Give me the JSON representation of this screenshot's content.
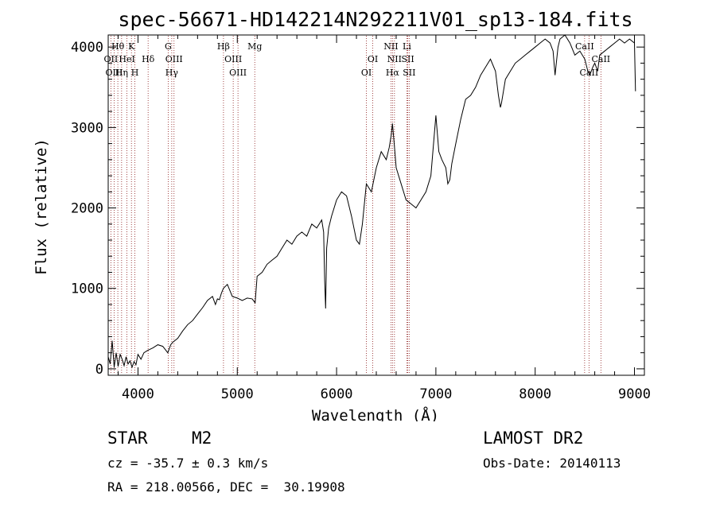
{
  "chart_data": {
    "type": "line",
    "title": "spec-56671-HD142214N292211V01_sp13-184.fits",
    "xlabel": "Wavelength (Å)",
    "ylabel": "Flux (relative)",
    "xlim": [
      3700,
      9100
    ],
    "ylim": [
      -80,
      4150
    ],
    "xticks": [
      4000,
      5000,
      6000,
      7000,
      8000,
      9000
    ],
    "yticks": [
      0,
      1000,
      2000,
      3000,
      4000
    ],
    "series": [
      {
        "name": "flux",
        "x": [
          3700,
          3720,
          3740,
          3760,
          3780,
          3800,
          3820,
          3840,
          3860,
          3880,
          3900,
          3920,
          3940,
          3960,
          3980,
          4000,
          4030,
          4060,
          4100,
          4150,
          4200,
          4250,
          4300,
          4330,
          4350,
          4400,
          4450,
          4500,
          4550,
          4600,
          4650,
          4700,
          4750,
          4780,
          4800,
          4820,
          4840,
          4860,
          4900,
          4950,
          5000,
          5050,
          5100,
          5150,
          5180,
          5200,
          5250,
          5300,
          5350,
          5400,
          5450,
          5500,
          5550,
          5600,
          5650,
          5700,
          5750,
          5800,
          5850,
          5870,
          5880,
          5890,
          5900,
          5920,
          5950,
          6000,
          6050,
          6100,
          6150,
          6200,
          6230,
          6260,
          6300,
          6350,
          6400,
          6450,
          6500,
          6530,
          6550,
          6563,
          6580,
          6600,
          6650,
          6700,
          6750,
          6800,
          6850,
          6900,
          6950,
          7000,
          7030,
          7060,
          7100,
          7120,
          7140,
          7160,
          7200,
          7250,
          7300,
          7350,
          7400,
          7450,
          7500,
          7550,
          7600,
          7630,
          7650,
          7660,
          7680,
          7700,
          7750,
          7800,
          7850,
          7900,
          7950,
          8000,
          8050,
          8100,
          8150,
          8180,
          8200,
          8230,
          8250,
          8300,
          8350,
          8400,
          8450,
          8500,
          8530,
          8550,
          8580,
          8600,
          8630,
          8650,
          8700,
          8750,
          8800,
          8850,
          8900,
          8950,
          9000,
          9010
        ],
        "values": [
          150,
          60,
          350,
          20,
          200,
          30,
          180,
          120,
          40,
          150,
          60,
          100,
          20,
          90,
          50,
          180,
          120,
          200,
          230,
          260,
          300,
          280,
          200,
          300,
          330,
          380,
          470,
          550,
          600,
          680,
          760,
          850,
          900,
          800,
          870,
          860,
          940,
          1000,
          1050,
          900,
          880,
          850,
          880,
          870,
          820,
          1150,
          1200,
          1300,
          1350,
          1400,
          1500,
          1600,
          1550,
          1650,
          1700,
          1650,
          1800,
          1750,
          1850,
          1700,
          1100,
          750,
          1500,
          1750,
          1900,
          2100,
          2200,
          2150,
          1900,
          1600,
          1550,
          1800,
          2300,
          2200,
          2500,
          2700,
          2600,
          2750,
          2900,
          3050,
          2800,
          2500,
          2300,
          2100,
          2050,
          2000,
          2100,
          2200,
          2400,
          3150,
          2700,
          2600,
          2500,
          2300,
          2350,
          2550,
          2800,
          3100,
          3350,
          3400,
          3500,
          3650,
          3750,
          3850,
          3700,
          3400,
          3250,
          3300,
          3450,
          3600,
          3700,
          3800,
          3850,
          3900,
          3950,
          4000,
          4050,
          4100,
          4050,
          3950,
          3650,
          4000,
          4100,
          4150,
          4050,
          3900,
          3950,
          3850,
          3700,
          3650,
          3750,
          3800,
          3700,
          3900,
          3950,
          4000,
          4050,
          4100,
          4050,
          4100,
          4050,
          3450
        ]
      }
    ],
    "lines": [
      {
        "label": "Hθ",
        "x": 3797,
        "row": 1
      },
      {
        "label": "K",
        "x": 3934,
        "row": 1
      },
      {
        "label": "OII",
        "x": 3727,
        "row": 2
      },
      {
        "label": "HeI",
        "x": 3889,
        "row": 2
      },
      {
        "label": "Hδ",
        "x": 4102,
        "row": 2
      },
      {
        "label": "OIII",
        "x": 3760,
        "row": 3
      },
      {
        "label": "Hη",
        "x": 3835,
        "row": 3
      },
      {
        "label": "H",
        "x": 3969,
        "row": 3
      },
      {
        "label": "G",
        "x": 4304,
        "row": 1
      },
      {
        "label": "OIII",
        "x": 4363,
        "row": 2
      },
      {
        "label": "Hγ",
        "x": 4340,
        "row": 3
      },
      {
        "label": "Hβ",
        "x": 4861,
        "row": 1
      },
      {
        "label": "OIII",
        "x": 4959,
        "row": 2
      },
      {
        "label": "OIII",
        "x": 5007,
        "row": 3
      },
      {
        "label": "Mg",
        "x": 5176,
        "row": 1
      },
      {
        "label": "OI",
        "x": 6364,
        "row": 2
      },
      {
        "label": "OI",
        "x": 6300,
        "row": 3
      },
      {
        "label": "NII",
        "x": 6548,
        "row": 1
      },
      {
        "label": "NII",
        "x": 6583,
        "row": 2
      },
      {
        "label": "Hα",
        "x": 6563,
        "row": 3
      },
      {
        "label": "Li",
        "x": 6708,
        "row": 1
      },
      {
        "label": "SII",
        "x": 6717,
        "row": 2
      },
      {
        "label": "SII",
        "x": 6731,
        "row": 3
      },
      {
        "label": "CaII",
        "x": 8498,
        "row": 1
      },
      {
        "label": "CaII",
        "x": 8662,
        "row": 2
      },
      {
        "label": "CaII",
        "x": 8542,
        "row": 3
      }
    ]
  },
  "info": {
    "object_type": "STAR",
    "subclass": "M2",
    "survey": "LAMOST DR2",
    "cz": "cz = -35.7 ± 0.3 km/s",
    "obs_date": "Obs-Date: 20140113",
    "coords": "RA = 218.00566, DEC =  30.19908"
  },
  "colors": {
    "spectrum": "#000000",
    "line_markers": "#8b1a1a",
    "axes": "#000000"
  }
}
